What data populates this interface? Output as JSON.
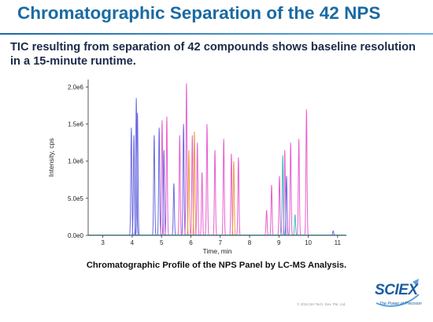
{
  "slide": {
    "title": "Chromatographic Separation of the 42 NPS",
    "subtitle": "TIC resulting from separation of 42 compounds shows baseline resolution in a 15-minute runtime.",
    "caption": "Chromatographic Profile of the NPS Panel by LC-MS Analysis.",
    "copyright": "© 2016 DH Tech. Dev. Pte. Ltd.",
    "logo": {
      "text": "SCIEX",
      "tagline": "The Power of Precision"
    }
  },
  "colors": {
    "title": "#1a6aa3",
    "blue_series": "#6a6ae0",
    "pink_series": "#e860d0",
    "orange_series": "#e8a040",
    "teal_series": "#40c0c0"
  },
  "chart_data": {
    "type": "line",
    "xlabel": "Time, min",
    "ylabel": "Intensity, cps",
    "xlim": [
      2.5,
      11.3
    ],
    "ylim": [
      0,
      2100000
    ],
    "x_ticks": [
      3,
      4,
      5,
      6,
      7,
      8,
      9,
      10,
      11
    ],
    "y_ticks": [
      {
        "value": 0,
        "label": "0.0e0"
      },
      {
        "value": 500000,
        "label": "5.0e5"
      },
      {
        "value": 1000000,
        "label": "1.0e6"
      },
      {
        "value": 1500000,
        "label": "1.5e6"
      },
      {
        "value": 2000000,
        "label": "2.0e6"
      }
    ],
    "grid": false,
    "peaks": [
      {
        "rt": 3.97,
        "height": 1450000,
        "color": "#6a6ae0"
      },
      {
        "rt": 4.06,
        "height": 1350000,
        "color": "#6a6ae0"
      },
      {
        "rt": 4.14,
        "height": 1850000,
        "color": "#6a6ae0"
      },
      {
        "rt": 4.18,
        "height": 1650000,
        "color": "#6a6ae0"
      },
      {
        "rt": 4.75,
        "height": 1350000,
        "color": "#6a6ae0"
      },
      {
        "rt": 4.92,
        "height": 1450000,
        "color": "#6a6ae0"
      },
      {
        "rt": 5.02,
        "height": 1550000,
        "color": "#e860d0"
      },
      {
        "rt": 5.08,
        "height": 1150000,
        "color": "#6a6ae0"
      },
      {
        "rt": 5.18,
        "height": 1600000,
        "color": "#e860d0"
      },
      {
        "rt": 5.42,
        "height": 700000,
        "color": "#6a6ae0"
      },
      {
        "rt": 5.62,
        "height": 1350000,
        "color": "#e860d0"
      },
      {
        "rt": 5.75,
        "height": 1500000,
        "color": "#6a6ae0"
      },
      {
        "rt": 5.85,
        "height": 2050000,
        "color": "#e860d0"
      },
      {
        "rt": 5.93,
        "height": 1150000,
        "color": "#e8a040"
      },
      {
        "rt": 6.05,
        "height": 1350000,
        "color": "#e860d0"
      },
      {
        "rt": 6.12,
        "height": 1400000,
        "color": "#e8a040"
      },
      {
        "rt": 6.22,
        "height": 1250000,
        "color": "#e860d0"
      },
      {
        "rt": 6.38,
        "height": 850000,
        "color": "#e860d0"
      },
      {
        "rt": 6.55,
        "height": 1500000,
        "color": "#e860d0"
      },
      {
        "rt": 6.82,
        "height": 1150000,
        "color": "#e860d0"
      },
      {
        "rt": 7.12,
        "height": 1300000,
        "color": "#e860d0"
      },
      {
        "rt": 7.38,
        "height": 1100000,
        "color": "#e860d0"
      },
      {
        "rt": 7.46,
        "height": 1000000,
        "color": "#e8a040"
      },
      {
        "rt": 7.62,
        "height": 1050000,
        "color": "#e860d0"
      },
      {
        "rt": 8.58,
        "height": 340000,
        "color": "#e860d0"
      },
      {
        "rt": 8.75,
        "height": 680000,
        "color": "#e860d0"
      },
      {
        "rt": 9.02,
        "height": 800000,
        "color": "#e860d0"
      },
      {
        "rt": 9.13,
        "height": 1080000,
        "color": "#40c0c0"
      },
      {
        "rt": 9.2,
        "height": 1150000,
        "color": "#e860d0"
      },
      {
        "rt": 9.26,
        "height": 800000,
        "color": "#6a6ae0"
      },
      {
        "rt": 9.4,
        "height": 1250000,
        "color": "#e860d0"
      },
      {
        "rt": 9.55,
        "height": 280000,
        "color": "#40c0c0"
      },
      {
        "rt": 9.68,
        "height": 1300000,
        "color": "#e860d0"
      },
      {
        "rt": 9.94,
        "height": 1700000,
        "color": "#e860d0"
      },
      {
        "rt": 10.85,
        "height": 60000,
        "color": "#6a6ae0"
      }
    ]
  }
}
